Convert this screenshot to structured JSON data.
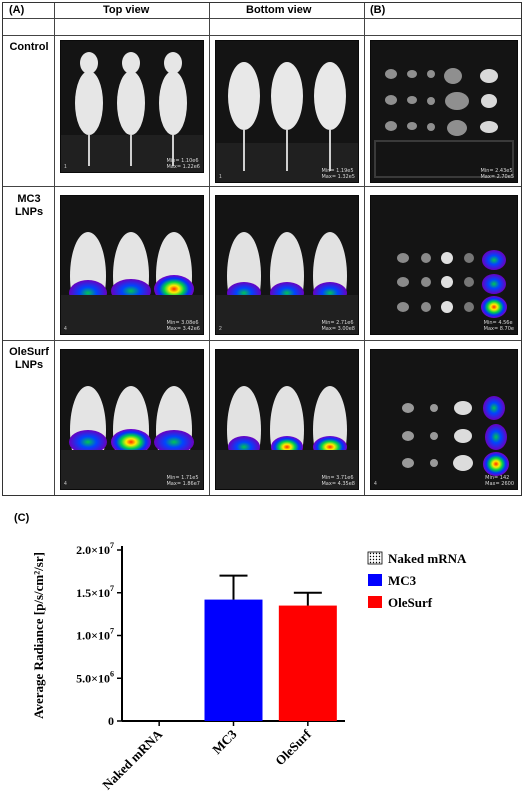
{
  "panels": {
    "a_label": "(A)",
    "b_label": "(B)",
    "c_label": "(C)",
    "col_top": "Top view",
    "col_bottom": "Bottom view",
    "rows": [
      {
        "label": "Control"
      },
      {
        "label": "MC3 LNPs"
      },
      {
        "label": "OleSurf LNPs"
      }
    ]
  },
  "images": {
    "control_top": {
      "idx": "1",
      "min": "Min= 1.10e6",
      "max": "Max= 1.22e6"
    },
    "control_bottom": {
      "idx": "1",
      "min": "Min= 1.19e5",
      "max": "Max= 1.32e5"
    },
    "control_organs": {
      "idx": "",
      "min": "Min= 2.43e5",
      "max": "Max= 2.70e5"
    },
    "mc3_top": {
      "idx": "4",
      "min": "Min= 3.08e6",
      "max": "Max= 3.42e6"
    },
    "mc3_bottom": {
      "idx": "2",
      "min": "Min= 2.71e6",
      "max": "Max= 3.00e8"
    },
    "mc3_organs": {
      "idx": "",
      "min": "Min= 4.56e",
      "max": "Max= 8.70e"
    },
    "ole_top": {
      "idx": "4",
      "min": "Min= 1.71e5",
      "max": "Max= 1.86e7"
    },
    "ole_bottom": {
      "idx": "",
      "min": "Min= 3.71e6",
      "max": "Max= 4.35e8"
    },
    "ole_organs": {
      "idx": "4",
      "min": "Min= 142",
      "max": "Max= 2600"
    }
  },
  "colors": {
    "mc3": "#0000ff",
    "olesurf": "#ff0000",
    "naked": "#000000"
  },
  "chart_data": {
    "type": "bar",
    "categories": [
      "Naked mRNA",
      "MC3",
      "OleSurf"
    ],
    "values": [
      0,
      14200000,
      13500000
    ],
    "errors": [
      0,
      2800000,
      1500000
    ],
    "ylabel": "Average Radiance [p/s/cm²/sr]",
    "ylim": [
      0,
      20000000
    ],
    "yticks": [
      {
        "v": 0,
        "mant": "0",
        "exp": ""
      },
      {
        "v": 5000000,
        "mant": "5.0×10",
        "exp": "6"
      },
      {
        "v": 10000000,
        "mant": "1.0×10",
        "exp": "7"
      },
      {
        "v": 15000000,
        "mant": "1.5×10",
        "exp": "7"
      },
      {
        "v": 20000000,
        "mant": "2.0×10",
        "exp": "7"
      }
    ],
    "legend": [
      {
        "name": "Naked mRNA",
        "color": "#000000",
        "pattern": "dots"
      },
      {
        "name": "MC3",
        "color": "#0000ff",
        "pattern": "solid"
      },
      {
        "name": "OleSurf",
        "color": "#ff0000",
        "pattern": "solid"
      }
    ],
    "legend_placement": "top-right",
    "grid": false
  }
}
